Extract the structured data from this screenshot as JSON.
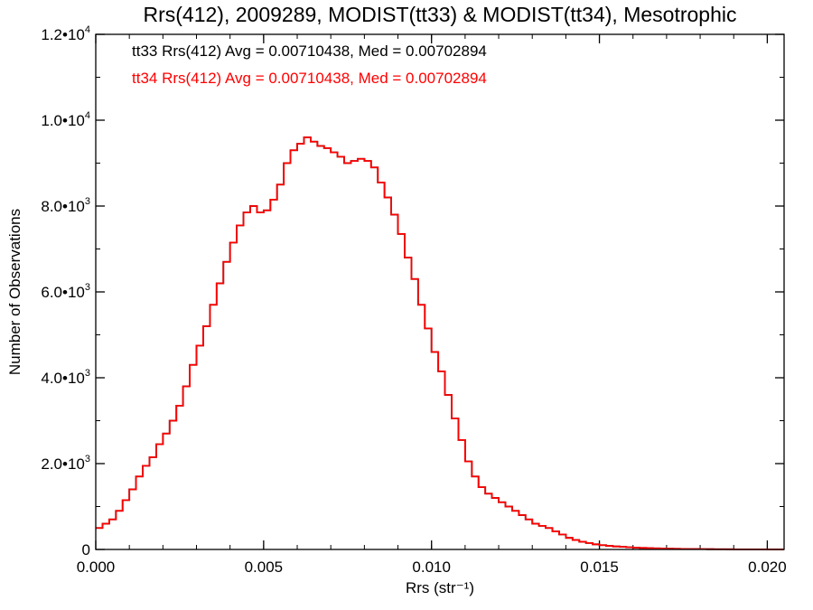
{
  "chart_data": {
    "type": "line",
    "title": "Rrs(412), 2009289, MODIST(tt33) & MODIST(tt34), Mesotrophic",
    "xlabel": "Rrs (str⁻¹)",
    "ylabel": "Number of Observations",
    "xlim": [
      0.0,
      0.0205
    ],
    "ylim": [
      0,
      12000
    ],
    "grid": false,
    "x_ticks": [
      {
        "v": 0.0,
        "label": "0.000"
      },
      {
        "v": 0.005,
        "label": "0.005"
      },
      {
        "v": 0.01,
        "label": "0.010"
      },
      {
        "v": 0.015,
        "label": "0.015"
      },
      {
        "v": 0.02,
        "label": "0.020"
      }
    ],
    "x_minor_step": 0.001,
    "y_ticks": [
      {
        "v": 0,
        "label": "0"
      },
      {
        "v": 2000,
        "label": "2.0•103"
      },
      {
        "v": 4000,
        "label": "4.0•103"
      },
      {
        "v": 6000,
        "label": "6.0•103"
      },
      {
        "v": 8000,
        "label": "8.0•103"
      },
      {
        "v": 10000,
        "label": "1.0•104"
      },
      {
        "v": 12000,
        "label": "1.2•104"
      }
    ],
    "y_minor_step": 1000,
    "annotations": [
      {
        "text": "tt33 Rrs(412) Avg = 0.00710438, Med = 0.00702894",
        "color": "#000000"
      },
      {
        "text": "tt34 Rrs(412) Avg = 0.00710438, Med = 0.00702894",
        "color": "#ff0000"
      }
    ],
    "series": [
      {
        "name": "tt33",
        "color": "#000000",
        "x": [
          0.0,
          0.0002,
          0.0004,
          0.0006,
          0.0008,
          0.001,
          0.0012,
          0.0014,
          0.0016,
          0.0018,
          0.002,
          0.0022,
          0.0024,
          0.0026,
          0.0028,
          0.003,
          0.0032,
          0.0034,
          0.0036,
          0.0038,
          0.004,
          0.0042,
          0.0044,
          0.0046,
          0.0048,
          0.005,
          0.0052,
          0.0054,
          0.0056,
          0.0058,
          0.006,
          0.0062,
          0.0064,
          0.0066,
          0.0068,
          0.007,
          0.0072,
          0.0074,
          0.0076,
          0.0078,
          0.008,
          0.0082,
          0.0084,
          0.0086,
          0.0088,
          0.009,
          0.0092,
          0.0094,
          0.0096,
          0.0098,
          0.01,
          0.0102,
          0.0104,
          0.0106,
          0.0108,
          0.011,
          0.0112,
          0.0114,
          0.0116,
          0.0118,
          0.012,
          0.0122,
          0.0124,
          0.0126,
          0.0128,
          0.013,
          0.0132,
          0.0134,
          0.0136,
          0.0138,
          0.014,
          0.0142,
          0.0144,
          0.0146,
          0.0148,
          0.015,
          0.0152,
          0.0154,
          0.0156,
          0.0158,
          0.016,
          0.0162,
          0.0164,
          0.0166,
          0.0168,
          0.017,
          0.0172,
          0.0174,
          0.0176,
          0.0178,
          0.018,
          0.0182,
          0.0184,
          0.0186,
          0.0188,
          0.019,
          0.0192,
          0.0194,
          0.0196,
          0.0198,
          0.02,
          0.0202,
          0.0204
        ],
        "y": [
          500,
          600,
          700,
          900,
          1150,
          1400,
          1700,
          1950,
          2150,
          2450,
          2700,
          3000,
          3350,
          3800,
          4300,
          4750,
          5200,
          5700,
          6200,
          6700,
          7150,
          7550,
          7850,
          8000,
          7850,
          7900,
          8150,
          8500,
          9000,
          9300,
          9450,
          9600,
          9500,
          9400,
          9350,
          9250,
          9150,
          9000,
          9050,
          9100,
          9050,
          8900,
          8550,
          8200,
          7800,
          7350,
          6800,
          6300,
          5700,
          5150,
          4600,
          4150,
          3600,
          3050,
          2550,
          2050,
          1700,
          1450,
          1300,
          1200,
          1100,
          1000,
          900,
          800,
          700,
          600,
          550,
          500,
          420,
          350,
          270,
          220,
          180,
          150,
          120,
          100,
          85,
          70,
          60,
          50,
          42,
          36,
          30,
          25,
          22,
          18,
          15,
          12,
          10,
          9,
          8,
          7,
          6,
          5,
          4,
          3,
          3,
          2,
          2,
          2,
          1,
          1,
          1
        ],
        "avg": 0.00710438,
        "median": 0.00702894
      },
      {
        "name": "tt34",
        "color": "#ff0000",
        "x": [
          0.0,
          0.0002,
          0.0004,
          0.0006,
          0.0008,
          0.001,
          0.0012,
          0.0014,
          0.0016,
          0.0018,
          0.002,
          0.0022,
          0.0024,
          0.0026,
          0.0028,
          0.003,
          0.0032,
          0.0034,
          0.0036,
          0.0038,
          0.004,
          0.0042,
          0.0044,
          0.0046,
          0.0048,
          0.005,
          0.0052,
          0.0054,
          0.0056,
          0.0058,
          0.006,
          0.0062,
          0.0064,
          0.0066,
          0.0068,
          0.007,
          0.0072,
          0.0074,
          0.0076,
          0.0078,
          0.008,
          0.0082,
          0.0084,
          0.0086,
          0.0088,
          0.009,
          0.0092,
          0.0094,
          0.0096,
          0.0098,
          0.01,
          0.0102,
          0.0104,
          0.0106,
          0.0108,
          0.011,
          0.0112,
          0.0114,
          0.0116,
          0.0118,
          0.012,
          0.0122,
          0.0124,
          0.0126,
          0.0128,
          0.013,
          0.0132,
          0.0134,
          0.0136,
          0.0138,
          0.014,
          0.0142,
          0.0144,
          0.0146,
          0.0148,
          0.015,
          0.0152,
          0.0154,
          0.0156,
          0.0158,
          0.016,
          0.0162,
          0.0164,
          0.0166,
          0.0168,
          0.017,
          0.0172,
          0.0174,
          0.0176,
          0.0178,
          0.018,
          0.0182,
          0.0184,
          0.0186,
          0.0188,
          0.019,
          0.0192,
          0.0194,
          0.0196,
          0.0198,
          0.02,
          0.0202,
          0.0204
        ],
        "y": [
          500,
          600,
          700,
          900,
          1150,
          1400,
          1700,
          1950,
          2150,
          2450,
          2700,
          3000,
          3350,
          3800,
          4300,
          4750,
          5200,
          5700,
          6200,
          6700,
          7150,
          7550,
          7850,
          8000,
          7850,
          7900,
          8150,
          8500,
          9000,
          9300,
          9450,
          9600,
          9500,
          9400,
          9350,
          9250,
          9150,
          9000,
          9050,
          9100,
          9050,
          8900,
          8550,
          8200,
          7800,
          7350,
          6800,
          6300,
          5700,
          5150,
          4600,
          4150,
          3600,
          3050,
          2550,
          2050,
          1700,
          1450,
          1300,
          1200,
          1100,
          1000,
          900,
          800,
          700,
          600,
          550,
          500,
          420,
          350,
          270,
          220,
          180,
          150,
          120,
          100,
          85,
          70,
          60,
          50,
          42,
          36,
          30,
          25,
          22,
          18,
          15,
          12,
          10,
          9,
          8,
          7,
          6,
          5,
          4,
          3,
          3,
          2,
          2,
          2,
          1,
          1,
          1
        ],
        "avg": 0.00710438,
        "median": 0.00702894
      }
    ]
  }
}
